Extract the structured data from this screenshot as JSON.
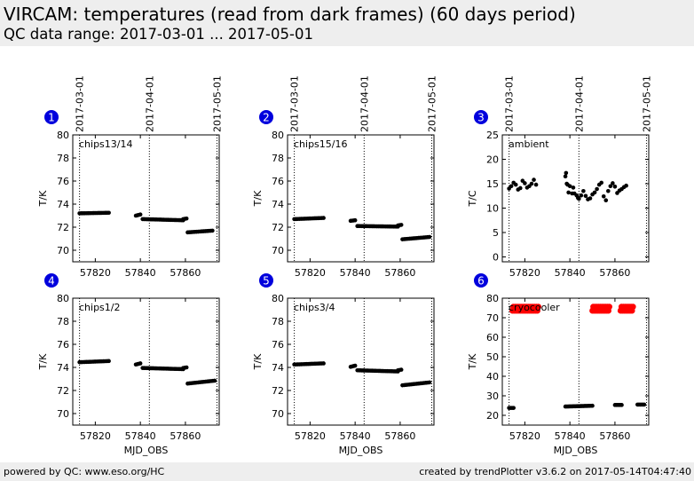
{
  "header": {
    "title": "VIRCAM: temperatures (read from dark frames) (60 days period)",
    "subtitle": "QC data range: 2017-03-01 ... 2017-05-01"
  },
  "footer": {
    "left": "powered by QC: www.eso.org/HC",
    "right": "created by trendPlotter v3.6.2 on 2017-05-14T04:47:40"
  },
  "colors": {
    "marker": "#000000",
    "highlight_marker": "#ff0000",
    "badge": "#0000dd",
    "header_bg": "#eeeeee"
  },
  "chart_data": [
    {
      "type": "scatter",
      "number": "1",
      "label": "chips13/14",
      "xlabel": "",
      "ylabel": "T/K",
      "xlim": [
        57810,
        57875
      ],
      "ylim": [
        69,
        80
      ],
      "xticks": [
        57820,
        57840,
        57860
      ],
      "yticks": [
        70,
        72,
        74,
        76,
        78,
        80
      ],
      "date_markers": [
        {
          "mjd": 57813,
          "label": "2017-03-01"
        },
        {
          "mjd": 57844,
          "label": "2017-04-01"
        },
        {
          "mjd": 57874,
          "label": "2017-05-01"
        }
      ],
      "segments": [
        {
          "x_start": 57813.0,
          "x_end": 57826.0,
          "y_start": 73.2,
          "y_end": 73.25,
          "n": 18
        },
        {
          "x_start": 57838.0,
          "x_end": 57840.0,
          "y_start": 73.0,
          "y_end": 73.1,
          "n": 4
        },
        {
          "x_start": 57841.0,
          "x_end": 57859.0,
          "y_start": 72.7,
          "y_end": 72.6,
          "n": 28
        },
        {
          "x_start": 57859.0,
          "x_end": 57860.5,
          "y_start": 72.7,
          "y_end": 72.75,
          "n": 3
        },
        {
          "x_start": 57861.0,
          "x_end": 57872.0,
          "y_start": 71.55,
          "y_end": 71.7,
          "n": 15
        }
      ]
    },
    {
      "type": "scatter",
      "number": "2",
      "label": "chips15/16",
      "xlabel": "",
      "ylabel": "T/K",
      "xlim": [
        57810,
        57875
      ],
      "ylim": [
        69,
        80
      ],
      "xticks": [
        57820,
        57840,
        57860
      ],
      "yticks": [
        70,
        72,
        74,
        76,
        78,
        80
      ],
      "date_markers": [
        {
          "mjd": 57813,
          "label": "2017-03-01"
        },
        {
          "mjd": 57844,
          "label": "2017-04-01"
        },
        {
          "mjd": 57874,
          "label": "2017-05-01"
        }
      ],
      "segments": [
        {
          "x_start": 57813.0,
          "x_end": 57826.0,
          "y_start": 72.7,
          "y_end": 72.8,
          "n": 18
        },
        {
          "x_start": 57838.0,
          "x_end": 57840.0,
          "y_start": 72.55,
          "y_end": 72.6,
          "n": 4
        },
        {
          "x_start": 57841.0,
          "x_end": 57859.0,
          "y_start": 72.1,
          "y_end": 72.05,
          "n": 28
        },
        {
          "x_start": 57859.0,
          "x_end": 57860.5,
          "y_start": 72.15,
          "y_end": 72.2,
          "n": 3
        },
        {
          "x_start": 57861.0,
          "x_end": 57873.0,
          "y_start": 70.95,
          "y_end": 71.15,
          "n": 16
        }
      ]
    },
    {
      "type": "scatter",
      "number": "3",
      "label": "ambient",
      "xlabel": "",
      "ylabel": "T/C",
      "xlim": [
        57810,
        57875
      ],
      "ylim": [
        -1,
        25
      ],
      "xticks": [
        57820,
        57840,
        57860
      ],
      "yticks": [
        0,
        5,
        10,
        15,
        20,
        25
      ],
      "date_markers": [
        {
          "mjd": 57813,
          "label": "2017-03-01"
        },
        {
          "mjd": 57844,
          "label": "2017-04-01"
        },
        {
          "mjd": 57874,
          "label": "2017-05-01"
        }
      ],
      "points": [
        [
          57813,
          14.0
        ],
        [
          57814,
          14.5
        ],
        [
          57815,
          15.2
        ],
        [
          57816,
          14.8
        ],
        [
          57817,
          13.8
        ],
        [
          57818,
          14.1
        ],
        [
          57819,
          15.6
        ],
        [
          57820,
          15.1
        ],
        [
          57821,
          14.2
        ],
        [
          57822,
          14.5
        ],
        [
          57823,
          15.0
        ],
        [
          57824,
          15.8
        ],
        [
          57825,
          14.8
        ],
        [
          57838,
          16.5
        ],
        [
          57838.3,
          17.2
        ],
        [
          57838.6,
          15.0
        ],
        [
          57839,
          14.8
        ],
        [
          57839.4,
          13.2
        ],
        [
          57840,
          14.5
        ],
        [
          57841,
          13.0
        ],
        [
          57841.5,
          14.2
        ],
        [
          57842,
          13.0
        ],
        [
          57843,
          12.6
        ],
        [
          57843.6,
          12.1
        ],
        [
          57844,
          11.9
        ],
        [
          57845,
          12.6
        ],
        [
          57846,
          13.5
        ],
        [
          57847,
          12.5
        ],
        [
          57848,
          11.8
        ],
        [
          57849,
          12.0
        ],
        [
          57850,
          12.8
        ],
        [
          57851,
          13.2
        ],
        [
          57852,
          13.9
        ],
        [
          57853,
          14.8
        ],
        [
          57854,
          15.2
        ],
        [
          57855,
          12.4
        ],
        [
          57856,
          11.6
        ],
        [
          57857,
          13.5
        ],
        [
          57858,
          14.5
        ],
        [
          57859,
          15.1
        ],
        [
          57860,
          14.4
        ],
        [
          57861,
          13.1
        ],
        [
          57862,
          13.6
        ],
        [
          57863,
          13.9
        ],
        [
          57864,
          14.3
        ],
        [
          57865,
          14.6
        ]
      ]
    },
    {
      "type": "scatter",
      "number": "4",
      "label": "chips1/2",
      "xlabel": "MJD_OBS",
      "ylabel": "T/K",
      "xlim": [
        57810,
        57875
      ],
      "ylim": [
        69,
        80
      ],
      "xticks": [
        57820,
        57840,
        57860
      ],
      "yticks": [
        70,
        72,
        74,
        76,
        78,
        80
      ],
      "date_markers": [
        {
          "mjd": 57813,
          "label": ""
        },
        {
          "mjd": 57844,
          "label": ""
        },
        {
          "mjd": 57874,
          "label": ""
        }
      ],
      "segments": [
        {
          "x_start": 57813.0,
          "x_end": 57826.0,
          "y_start": 74.45,
          "y_end": 74.55,
          "n": 18
        },
        {
          "x_start": 57838.0,
          "x_end": 57840.0,
          "y_start": 74.25,
          "y_end": 74.35,
          "n": 4
        },
        {
          "x_start": 57841.0,
          "x_end": 57859.0,
          "y_start": 73.95,
          "y_end": 73.85,
          "n": 28
        },
        {
          "x_start": 57859.0,
          "x_end": 57860.5,
          "y_start": 73.95,
          "y_end": 74.0,
          "n": 3
        },
        {
          "x_start": 57861.0,
          "x_end": 57873.0,
          "y_start": 72.6,
          "y_end": 72.85,
          "n": 16
        }
      ]
    },
    {
      "type": "scatter",
      "number": "5",
      "label": "chips3/4",
      "xlabel": "MJD_OBS",
      "ylabel": "T/K",
      "xlim": [
        57810,
        57875
      ],
      "ylim": [
        69,
        80
      ],
      "xticks": [
        57820,
        57840,
        57860
      ],
      "yticks": [
        70,
        72,
        74,
        76,
        78,
        80
      ],
      "date_markers": [
        {
          "mjd": 57813,
          "label": ""
        },
        {
          "mjd": 57844,
          "label": ""
        },
        {
          "mjd": 57874,
          "label": ""
        }
      ],
      "segments": [
        {
          "x_start": 57813.0,
          "x_end": 57826.0,
          "y_start": 74.25,
          "y_end": 74.35,
          "n": 18
        },
        {
          "x_start": 57838.0,
          "x_end": 57840.0,
          "y_start": 74.05,
          "y_end": 74.15,
          "n": 4
        },
        {
          "x_start": 57841.0,
          "x_end": 57859.0,
          "y_start": 73.75,
          "y_end": 73.65,
          "n": 28
        },
        {
          "x_start": 57859.0,
          "x_end": 57860.5,
          "y_start": 73.75,
          "y_end": 73.8,
          "n": 3
        },
        {
          "x_start": 57861.0,
          "x_end": 57873.0,
          "y_start": 72.45,
          "y_end": 72.7,
          "n": 16
        }
      ]
    },
    {
      "type": "scatter",
      "number": "6",
      "label": "cryocooler",
      "xlabel": "MJD_OBS",
      "ylabel": "T/K",
      "xlim": [
        57810,
        57875
      ],
      "ylim": [
        15,
        80
      ],
      "xticks": [
        57820,
        57840,
        57860
      ],
      "yticks": [
        20,
        30,
        40,
        50,
        60,
        70,
        80
      ],
      "date_markers": [
        {
          "mjd": 57813,
          "label": ""
        },
        {
          "mjd": 57844,
          "label": ""
        },
        {
          "mjd": 57874,
          "label": ""
        }
      ],
      "segments": [
        {
          "x_start": 57813.0,
          "x_end": 57815.0,
          "y_start": 23.8,
          "y_end": 23.8,
          "n": 4
        },
        {
          "x_start": 57838.0,
          "x_end": 57850.0,
          "y_start": 24.5,
          "y_end": 24.9,
          "n": 22
        },
        {
          "x_start": 57860.0,
          "x_end": 57863.0,
          "y_start": 25.3,
          "y_end": 25.3,
          "n": 6
        },
        {
          "x_start": 57870.0,
          "x_end": 57873.0,
          "y_start": 25.5,
          "y_end": 25.5,
          "n": 6
        }
      ],
      "highlight_segments": [
        {
          "x_start": 57814.5,
          "x_end": 57826.0,
          "y_start": 73.6,
          "y_end": 75.6,
          "n": 28
        },
        {
          "x_start": 57850.0,
          "x_end": 57857.5,
          "y_start": 73.6,
          "y_end": 75.6,
          "n": 20
        },
        {
          "x_start": 57862.5,
          "x_end": 57868.0,
          "y_start": 73.6,
          "y_end": 75.6,
          "n": 14
        }
      ]
    }
  ]
}
